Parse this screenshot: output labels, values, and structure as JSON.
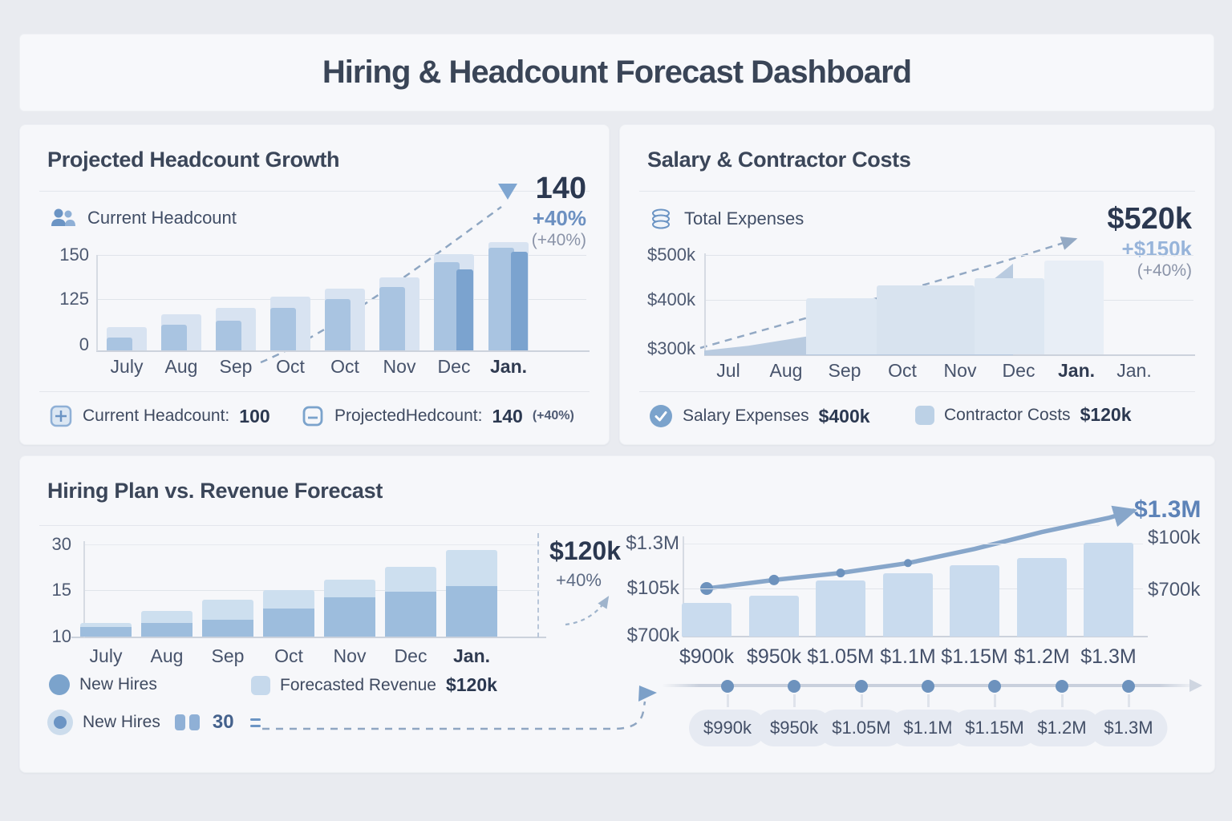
{
  "header": {
    "title": "Hiring & Headcount Forecast Dashboard"
  },
  "headcount_panel": {
    "title": "Projected Headcount Growth",
    "metric_label": "Current Headcount",
    "stat_value": "140",
    "stat_change": "+40%",
    "stat_note": "(+40%)",
    "legend": [
      {
        "label": "Current Headcount:",
        "value": "100"
      },
      {
        "label": "ProjectedHedcount:",
        "value": "140",
        "note": "(+40%)"
      }
    ]
  },
  "costs_panel": {
    "title": "Salary & Contractor Costs",
    "metric_label": "Total Expenses",
    "stat_value": "$520k",
    "stat_change": "+$150k",
    "stat_note": "(+40%)",
    "legend": [
      {
        "label": "Salary Expenses",
        "value": "$400k"
      },
      {
        "label": "Contractor Costs",
        "value": "$120k"
      }
    ]
  },
  "hiring_panel": {
    "title": "Hiring Plan vs. Revenue Forecast",
    "stat_value": "$120k",
    "stat_change": "+40%",
    "legend_row1": [
      {
        "label": "New Hires"
      },
      {
        "label": "Forecasted Revenue",
        "value": "$120k"
      }
    ],
    "legend_row2": {
      "label": "New Hires",
      "value": "30"
    },
    "right_annotation": "$1.3M"
  },
  "colors": {
    "bar_light": "#d8e3f1",
    "bar_medium": "#a9c4e1",
    "bar_dark": "#7ba3cf",
    "area_fill": "#b5c8de",
    "step_light": "#dde7f2",
    "step_lighter": "#e8eef6",
    "bl_total": "#cddfef",
    "bl_hires": "#9dbddd",
    "br_bar": "#c9dbee",
    "accent_blue": "#6c90c1",
    "stat_dark": "#2b3850"
  },
  "chart_data": [
    {
      "id": "headcount_growth",
      "type": "bar",
      "title": "Projected Headcount Growth",
      "categories": [
        "July",
        "Aug",
        "Sep",
        "Oct",
        "Oct",
        "Nov",
        "Dec",
        "Jan."
      ],
      "yticks": [
        "150",
        "125",
        "0"
      ],
      "series": [
        {
          "name": "Projected Headcount",
          "values": [
            40,
            62,
            72,
            92,
            105,
            125,
            165,
            185
          ]
        },
        {
          "name": "Current Headcount",
          "values": [
            22,
            44,
            50,
            72,
            88,
            108,
            150,
            175
          ]
        },
        {
          "name": "Current Headcount (inner)",
          "values": [
            null,
            null,
            null,
            null,
            null,
            null,
            138,
            168
          ]
        }
      ],
      "annotations": {
        "end_value": "140",
        "change": "+40%",
        "change_note": "(+40%)"
      }
    },
    {
      "id": "salary_contractor_costs",
      "type": "area",
      "title": "Salary & Contractor Costs",
      "categories": [
        "Jul",
        "Aug",
        "Sep",
        "Oct",
        "Nov",
        "Dec",
        "Jan.",
        "Jan."
      ],
      "yticks": [
        "$500k",
        "$400k",
        "$300k"
      ],
      "ylim": [
        300,
        520
      ],
      "unit": "$k",
      "series": [
        {
          "name": "Salary Expenses (area)",
          "values": [
            310,
            320,
            335,
            350,
            368,
            385,
            420,
            495
          ]
        },
        {
          "name": "Total with Contractor (steps)",
          "values": [
            420,
            447,
            462,
            500
          ]
        }
      ],
      "annotations": {
        "end_value": "$520k",
        "change": "+$150k",
        "change_note": "(+40%)"
      }
    },
    {
      "id": "hiring_plan",
      "type": "bar",
      "title": "Hiring Plan vs. Revenue Forecast",
      "categories": [
        "July",
        "Aug",
        "Sep",
        "Oct",
        "Nov",
        "Dec",
        "Jan."
      ],
      "yticks": [
        "30",
        "15",
        "10"
      ],
      "series": [
        {
          "name": "Forecasted Revenue (total)",
          "values": [
            11.5,
            12.8,
            14,
            15,
            18.5,
            22.5,
            28
          ]
        },
        {
          "name": "New Hires",
          "values": [
            11,
            11.5,
            11.8,
            13,
            14.2,
            14.8,
            16.3
          ]
        }
      ],
      "annotations": {
        "end_value": "$120k",
        "change": "+40%"
      }
    },
    {
      "id": "revenue_forecast",
      "type": "bar+line",
      "categories": [
        "$900k",
        "$950k",
        "$1.05M",
        "$1.1M",
        "$1.15M",
        "$1.2M",
        "$1.3M"
      ],
      "bar_values": [
        900,
        950,
        1050,
        1100,
        1150,
        1200,
        1300
      ],
      "line_values": [
        1050,
        1080,
        1105,
        1140,
        1190,
        1250,
        1300
      ],
      "left_yticks": [
        "$1.3M",
        "$105k",
        "$700k"
      ],
      "right_yticks": [
        "$100k",
        "$700k"
      ],
      "annotation": "$1.3M"
    },
    {
      "id": "revenue_timeline",
      "type": "timeline",
      "labels": [
        "$990k",
        "$950k",
        "$1.05M",
        "$1.1M",
        "$1.15M",
        "$1.2M",
        "$1.3M"
      ]
    }
  ]
}
